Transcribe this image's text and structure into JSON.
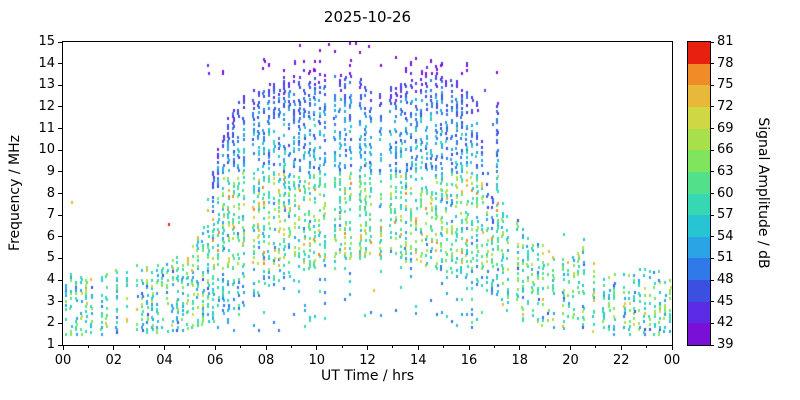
{
  "chart_data": {
    "type": "scatter",
    "title": "2025-10-26",
    "xlabel": "UT Time / hrs",
    "ylabel": "Frequency / MHz",
    "xlim": [
      0,
      24
    ],
    "ylim": [
      1,
      15
    ],
    "grid": false,
    "x_major_ticks": [
      0,
      2,
      4,
      6,
      8,
      10,
      12,
      14,
      16,
      18,
      20,
      22,
      24
    ],
    "x_tick_labels": [
      "00",
      "02",
      "04",
      "06",
      "08",
      "10",
      "12",
      "14",
      "16",
      "18",
      "20",
      "22",
      "00"
    ],
    "x_minor_step": 1,
    "y_ticks": [
      1,
      2,
      3,
      4,
      5,
      6,
      7,
      8,
      9,
      10,
      11,
      12,
      13,
      14,
      15
    ],
    "colorbar": {
      "label": "Signal Amplitude / dB",
      "min": 39,
      "max": 81,
      "step": 3,
      "ticks": [
        39,
        42,
        45,
        48,
        51,
        54,
        57,
        60,
        63,
        66,
        69,
        72,
        75,
        78,
        81
      ],
      "colors": [
        "#7a0fd8",
        "#5b2be6",
        "#3b4fe0",
        "#2f7ae8",
        "#2aa4e4",
        "#27c4d4",
        "#35d8b2",
        "#52e08a",
        "#7fe45e",
        "#a8e04c",
        "#cfd844",
        "#e8b83a",
        "#f08c28",
        "#e82010"
      ]
    },
    "seed": 1337,
    "column_step_hr": 0.2,
    "envelope": [
      [
        0,
        1.5,
        4.4
      ],
      [
        0.5,
        1.5,
        4.2
      ],
      [
        1,
        1.5,
        4.1
      ],
      [
        1.5,
        1.5,
        4.3
      ],
      [
        2,
        1.6,
        4.5
      ],
      [
        2.5,
        1.6,
        4.6
      ],
      [
        3,
        1.6,
        4.8
      ],
      [
        3.5,
        1.6,
        4.7
      ],
      [
        4,
        1.6,
        5.0
      ],
      [
        4.5,
        1.7,
        5.2
      ],
      [
        5,
        1.8,
        5.4
      ],
      [
        5.5,
        2.0,
        6.8
      ],
      [
        6,
        2.2,
        9.8
      ],
      [
        6.5,
        2.5,
        11.6
      ],
      [
        7,
        2.8,
        12.4
      ],
      [
        7.5,
        3.2,
        12.8
      ],
      [
        8,
        3.6,
        13.0
      ],
      [
        8.5,
        4.0,
        13.3
      ],
      [
        9,
        4.3,
        13.5
      ],
      [
        9.5,
        4.5,
        13.6
      ],
      [
        10,
        4.6,
        13.8
      ],
      [
        10.5,
        4.8,
        13.6
      ],
      [
        11,
        5.0,
        13.5
      ],
      [
        11.5,
        5.0,
        13.4
      ],
      [
        12,
        5.0,
        13.1
      ],
      [
        12.5,
        5.0,
        12.9
      ],
      [
        13,
        5.0,
        13.0
      ],
      [
        13.5,
        4.9,
        13.2
      ],
      [
        14,
        4.8,
        13.5
      ],
      [
        14.5,
        4.6,
        13.7
      ],
      [
        15,
        4.5,
        13.5
      ],
      [
        15.5,
        4.2,
        13.2
      ],
      [
        16,
        4.0,
        12.6
      ],
      [
        16.3,
        3.8,
        12.2
      ],
      [
        16.6,
        3.6,
        9.6
      ],
      [
        16.9,
        3.4,
        8.2
      ],
      [
        17.05,
        3.2,
        13.4
      ],
      [
        17.2,
        3.0,
        8.0
      ],
      [
        17.5,
        2.6,
        7.2
      ],
      [
        18,
        2.2,
        6.6
      ],
      [
        18.5,
        2.0,
        5.8
      ],
      [
        19,
        1.9,
        5.6
      ],
      [
        19.5,
        1.8,
        5.2
      ],
      [
        20,
        1.7,
        5.0
      ],
      [
        20.5,
        1.6,
        5.6
      ],
      [
        21,
        1.5,
        4.6
      ],
      [
        21.5,
        1.5,
        4.4
      ],
      [
        22,
        1.5,
        4.3
      ],
      [
        22.5,
        1.5,
        4.5
      ],
      [
        23,
        1.5,
        4.6
      ],
      [
        23.5,
        1.5,
        4.4
      ],
      [
        24,
        1.5,
        4.3
      ]
    ],
    "purple_top": {
      "ranges": [
        [
          5.3,
          6.4
        ],
        [
          7.8,
          16.4
        ]
      ],
      "f": [
        13.55,
        14.3
      ],
      "prob": 0.55,
      "high": {
        "range": [
          9.2,
          12.4
        ],
        "f": [
          14.55,
          15.0
        ],
        "prob": 0.12
      }
    },
    "outliers": [
      [
        0.3,
        7.6,
        74
      ],
      [
        4.15,
        6.6,
        80
      ],
      [
        12.2,
        3.55,
        74
      ],
      [
        16.6,
        12.8,
        46
      ],
      [
        16.9,
        11.2,
        50
      ],
      [
        17.05,
        13.6,
        40
      ],
      [
        19.7,
        6.15,
        57
      ],
      [
        20.5,
        5.9,
        55
      ],
      [
        9.3,
        14.85,
        40
      ],
      [
        10.45,
        14.9,
        40
      ],
      [
        11.5,
        14.95,
        40
      ],
      [
        12.0,
        14.8,
        40
      ]
    ]
  }
}
